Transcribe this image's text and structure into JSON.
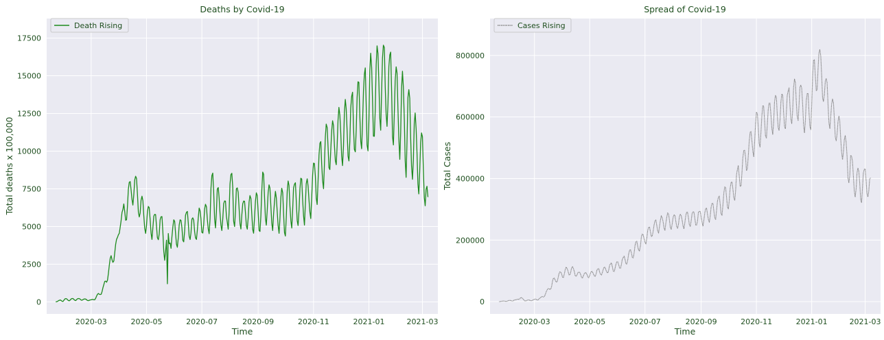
{
  "figure": {
    "text_color": "#1f4f1f",
    "axes_bg": "#eaeaf2",
    "grid_color": "#ffffff"
  },
  "chart_data": [
    {
      "type": "line",
      "title": "Deaths by Covid-19",
      "xlabel": "Time",
      "ylabel": "Total deaths x 100,000",
      "xlim": [
        "2020-01-12",
        "2021-03-18"
      ],
      "ylim": [
        -800,
        18800
      ],
      "xticks": [
        "2020-03",
        "2020-05",
        "2020-07",
        "2020-09",
        "2020-11",
        "2021-01",
        "2021-03"
      ],
      "yticks": [
        0,
        2500,
        5000,
        7500,
        10000,
        12500,
        15000,
        17500
      ],
      "ytick_labels": [
        "0",
        "2500",
        "5000",
        "7500",
        "10000",
        "12500",
        "15000",
        "17500"
      ],
      "grid": true,
      "legend": "upper-left",
      "series": [
        {
          "name": "Death Rising",
          "color": "#1d8a1d",
          "line_style": "solid",
          "x": [
            "2020-01-22",
            "2020-02-01",
            "2020-02-10",
            "2020-02-20",
            "2020-03-01",
            "2020-03-05",
            "2020-03-10",
            "2020-03-15",
            "2020-03-20",
            "2020-03-25",
            "2020-03-30",
            "2020-04-02",
            "2020-04-05",
            "2020-04-10",
            "2020-04-15",
            "2020-04-20",
            "2020-04-25",
            "2020-05-01",
            "2020-05-06",
            "2020-05-12",
            "2020-05-18",
            "2020-05-24",
            "2020-05-27",
            "2020-06-02",
            "2020-06-09",
            "2020-06-16",
            "2020-06-23",
            "2020-06-30",
            "2020-07-07",
            "2020-07-14",
            "2020-07-21",
            "2020-07-28",
            "2020-08-04",
            "2020-08-11",
            "2020-08-18",
            "2020-08-25",
            "2020-09-01",
            "2020-09-08",
            "2020-09-15",
            "2020-09-22",
            "2020-09-29",
            "2020-10-06",
            "2020-10-13",
            "2020-10-20",
            "2020-10-27",
            "2020-11-03",
            "2020-11-10",
            "2020-11-17",
            "2020-11-24",
            "2020-12-01",
            "2020-12-08",
            "2020-12-15",
            "2020-12-22",
            "2020-12-29",
            "2021-01-05",
            "2021-01-12",
            "2021-01-19",
            "2021-01-26",
            "2021-02-02",
            "2021-02-09",
            "2021-02-16",
            "2021-02-23",
            "2021-03-02",
            "2021-03-05",
            "2021-03-07"
          ],
          "y": [
            0,
            80,
            120,
            150,
            80,
            200,
            400,
            800,
            1800,
            2800,
            3600,
            5200,
            6000,
            6600,
            7800,
            8200,
            6500,
            5300,
            5100,
            4800,
            5000,
            1200,
            4700,
            4500,
            4600,
            4900,
            4700,
            5200,
            5000,
            5800,
            6200,
            6100,
            5900,
            6300,
            6100,
            5700,
            5100,
            5300,
            5600,
            5500,
            4300,
            5700,
            5900,
            6200,
            6500,
            7800,
            8900,
            9800,
            10500,
            11000,
            11300,
            12300,
            12600,
            13400,
            13800,
            15200,
            16200,
            14900,
            13600,
            12100,
            10200,
            9100,
            8800,
            7200,
            6800
          ],
          "envelope_hi": [
            50,
            250,
            250,
            250,
            150,
            300,
            700,
            1200,
            2600,
            3700,
            4500,
            6000,
            6200,
            8200,
            8500,
            8400,
            7200,
            6700,
            6500,
            6000,
            5800,
            4900,
            5400,
            5600,
            5900,
            6500,
            5600,
            6700,
            6900,
            9900,
            7000,
            6800,
            10200,
            7200,
            6900,
            7300,
            7700,
            9800,
            7800,
            7500,
            8300,
            8600,
            8400,
            9000,
            8300,
            10300,
            11300,
            12700,
            12400,
            13400,
            13800,
            14400,
            15300,
            16200,
            17100,
            17900,
            17500,
            16800,
            15700,
            15500,
            14900,
            12200,
            11600,
            10000,
            6900
          ],
          "envelope_lo": [
            0,
            0,
            50,
            80,
            50,
            100,
            300,
            600,
            1400,
            2200,
            3200,
            4700,
            4600,
            4500,
            5800,
            5500,
            4100,
            3900,
            3600,
            3500,
            3400,
            1200,
            3000,
            2900,
            3400,
            3600,
            3400,
            3900,
            3800,
            4000,
            4100,
            4100,
            4000,
            4200,
            4200,
            4000,
            3700,
            4000,
            4100,
            4000,
            3500,
            4000,
            4200,
            4300,
            4500,
            5300,
            6300,
            7300,
            7800,
            7700,
            7900,
            8100,
            8300,
            7900,
            8100,
            9000,
            9300,
            8200,
            8000,
            6500,
            6600,
            6200,
            5400,
            5300,
            5200
          ]
        }
      ]
    },
    {
      "type": "line",
      "title": "Spread of Covid-19",
      "xlabel": "Time",
      "ylabel": "Total Cases",
      "xlim": [
        "2020-01-12",
        "2021-03-18"
      ],
      "ylim": [
        -40000,
        920000
      ],
      "xticks": [
        "2020-03",
        "2020-05",
        "2020-07",
        "2020-09",
        "2020-11",
        "2021-01",
        "2021-03"
      ],
      "yticks": [
        0,
        200000,
        400000,
        600000,
        800000
      ],
      "ytick_labels": [
        "0",
        "200000",
        "400000",
        "600000",
        "800000"
      ],
      "grid": true,
      "legend": "upper-left",
      "series": [
        {
          "name": "Cases Rising",
          "color": "#808080",
          "line_style": "dotted",
          "x": [
            "2020-01-22",
            "2020-02-01",
            "2020-02-10",
            "2020-02-13",
            "2020-02-20",
            "2020-03-01",
            "2020-03-08",
            "2020-03-15",
            "2020-03-22",
            "2020-03-29",
            "2020-04-05",
            "2020-04-12",
            "2020-04-19",
            "2020-04-26",
            "2020-05-03",
            "2020-05-10",
            "2020-05-17",
            "2020-05-24",
            "2020-05-31",
            "2020-06-07",
            "2020-06-14",
            "2020-06-21",
            "2020-06-28",
            "2020-07-05",
            "2020-07-12",
            "2020-07-19",
            "2020-07-26",
            "2020-08-02",
            "2020-08-09",
            "2020-08-16",
            "2020-08-23",
            "2020-08-30",
            "2020-09-06",
            "2020-09-13",
            "2020-09-20",
            "2020-09-27",
            "2020-10-04",
            "2020-10-11",
            "2020-10-18",
            "2020-10-25",
            "2020-11-01",
            "2020-11-08",
            "2020-11-15",
            "2020-11-22",
            "2020-11-29",
            "2020-12-06",
            "2020-12-13",
            "2020-12-20",
            "2020-12-27",
            "2021-01-03",
            "2021-01-07",
            "2021-01-14",
            "2021-01-21",
            "2021-01-28",
            "2021-02-04",
            "2021-02-11",
            "2021-02-18",
            "2021-02-25",
            "2021-03-02",
            "2021-03-07"
          ],
          "y": [
            0,
            2000,
            5000,
            15000,
            3000,
            5000,
            10000,
            30000,
            60000,
            80000,
            90000,
            95000,
            85000,
            82000,
            88000,
            92000,
            95000,
            105000,
            110000,
            125000,
            145000,
            170000,
            195000,
            215000,
            235000,
            245000,
            250000,
            255000,
            250000,
            255000,
            260000,
            265000,
            270000,
            285000,
            300000,
            320000,
            340000,
            380000,
            430000,
            480000,
            540000,
            560000,
            580000,
            590000,
            600000,
            610000,
            640000,
            660000,
            620000,
            680000,
            780000,
            700000,
            600000,
            560000,
            510000,
            420000,
            370000,
            360000,
            390000,
            330000
          ],
          "envelope_hi": [
            1000,
            4000,
            7000,
            20000,
            5000,
            8000,
            15000,
            40000,
            80000,
            100000,
            115000,
            118000,
            100000,
            98000,
            100000,
            110000,
            115000,
            130000,
            135000,
            150000,
            170000,
            200000,
            225000,
            245000,
            270000,
            285000,
            295000,
            292000,
            290000,
            300000,
            300000,
            305000,
            310000,
            330000,
            350000,
            380000,
            400000,
            445000,
            510000,
            570000,
            630000,
            650000,
            670000,
            685000,
            700000,
            710000,
            740000,
            720000,
            690000,
            800000,
            880000,
            790000,
            690000,
            640000,
            580000,
            530000,
            460000,
            440000,
            450000,
            420000
          ],
          "envelope_lo": [
            0,
            0,
            2000,
            4000,
            1000,
            2000,
            5000,
            20000,
            45000,
            65000,
            75000,
            78000,
            72000,
            70000,
            75000,
            78000,
            80000,
            85000,
            92000,
            102000,
            120000,
            140000,
            165000,
            185000,
            205000,
            215000,
            220000,
            225000,
            222000,
            228000,
            230000,
            232000,
            235000,
            245000,
            255000,
            265000,
            285000,
            320000,
            370000,
            420000,
            460000,
            480000,
            500000,
            510000,
            520000,
            520000,
            540000,
            560000,
            440000,
            540000,
            640000,
            600000,
            530000,
            490000,
            420000,
            340000,
            300000,
            290000,
            320000,
            300000
          ]
        }
      ]
    }
  ]
}
